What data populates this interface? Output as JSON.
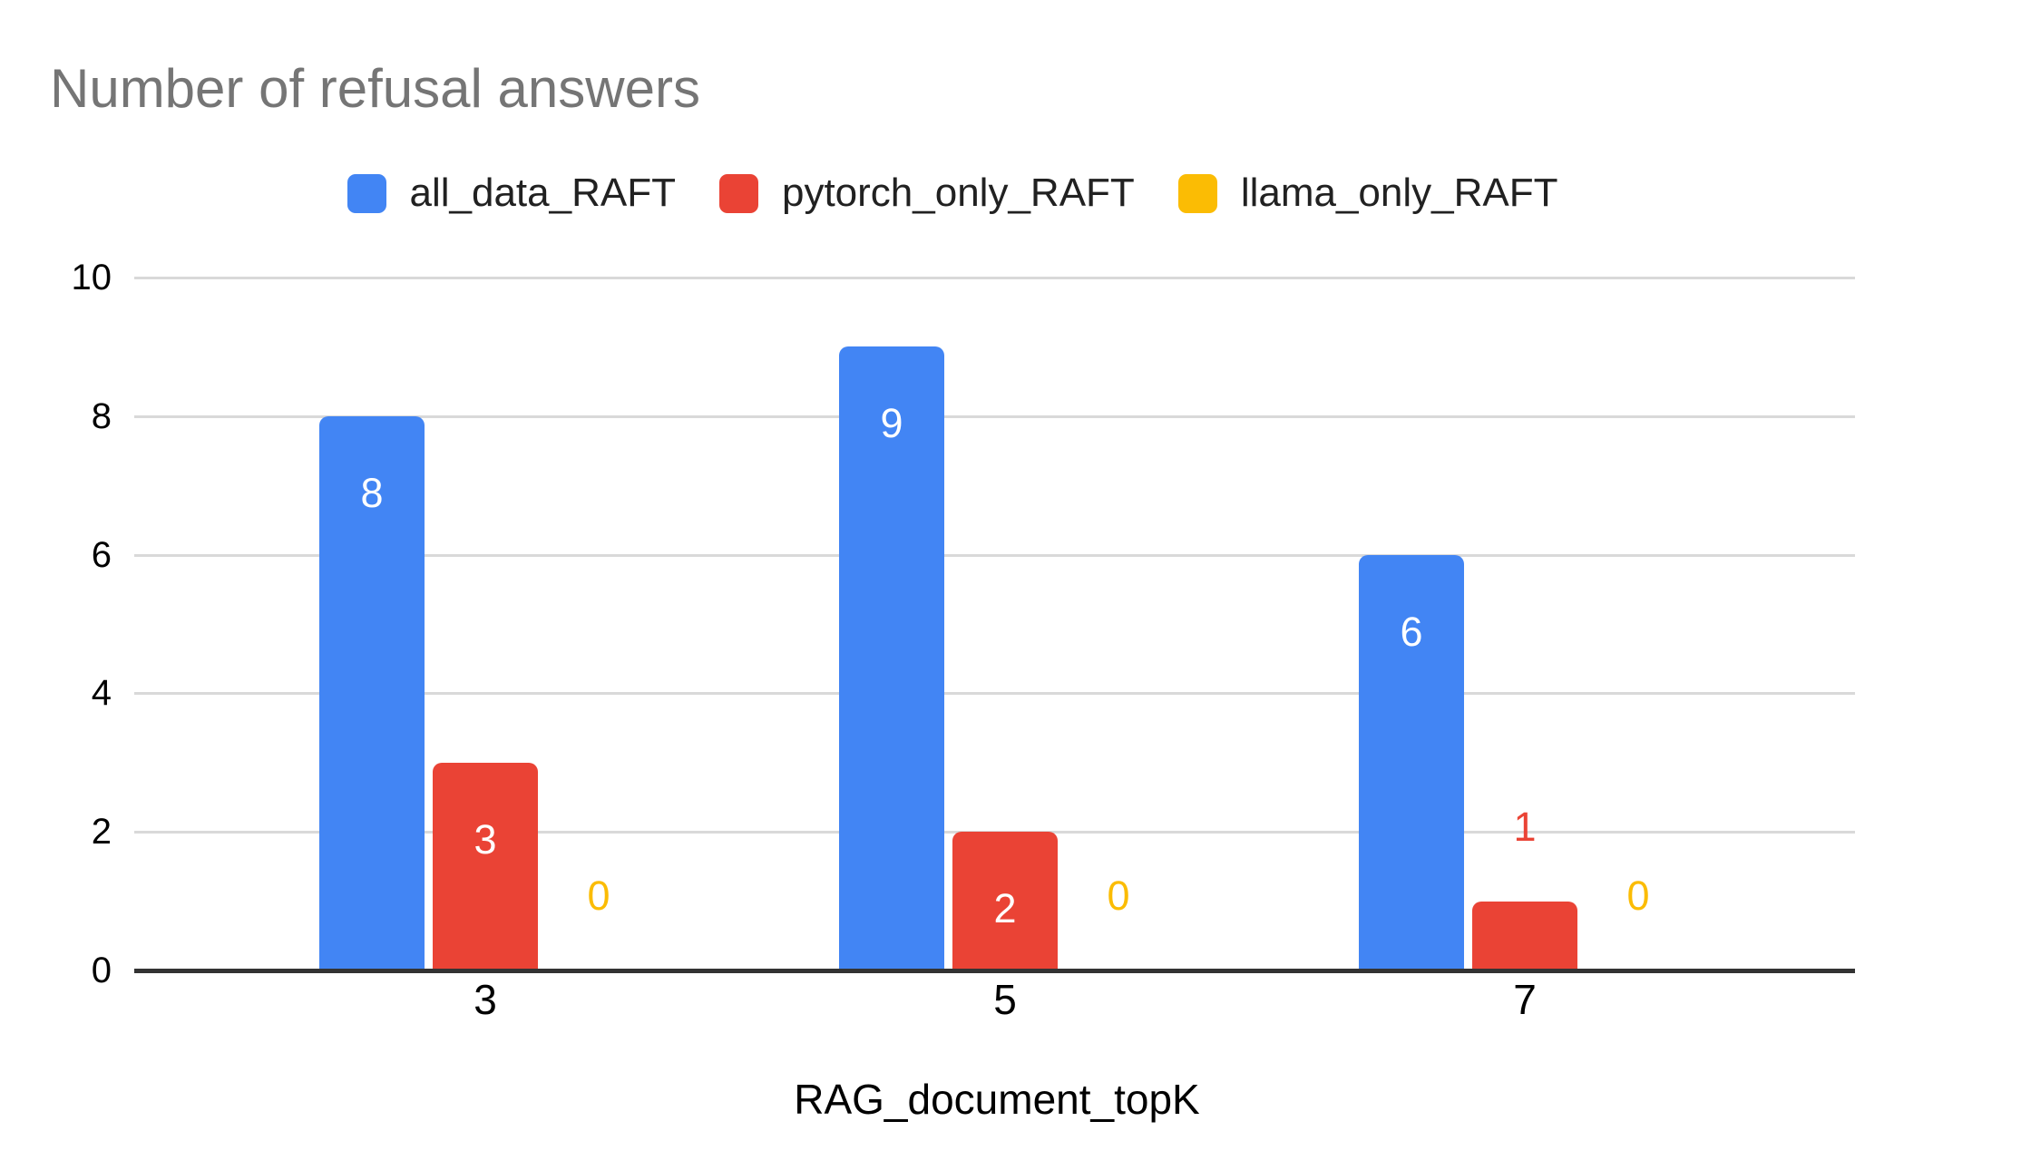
{
  "chart_data": {
    "type": "bar",
    "title": "Number of refusal answers",
    "title_color": "#757575",
    "xlabel": "RAG_document_topK",
    "categories": [
      "3",
      "5",
      "7"
    ],
    "series": [
      {
        "name": "all_data_RAFT",
        "color": "#4285F4",
        "values": [
          8,
          9,
          6
        ]
      },
      {
        "name": "pytorch_only_RAFT",
        "color": "#EA4335",
        "values": [
          3,
          2,
          1
        ]
      },
      {
        "name": "llama_only_RAFT",
        "color": "#FBBC04",
        "values": [
          0,
          0,
          0
        ]
      }
    ],
    "ylim": [
      0,
      10
    ],
    "yticks": [
      0,
      2,
      4,
      6,
      8,
      10
    ],
    "grid": true,
    "gridline_color": "#D9D9D9",
    "baseline_color": "#333333",
    "legend_position": "top",
    "value_labels": true
  }
}
